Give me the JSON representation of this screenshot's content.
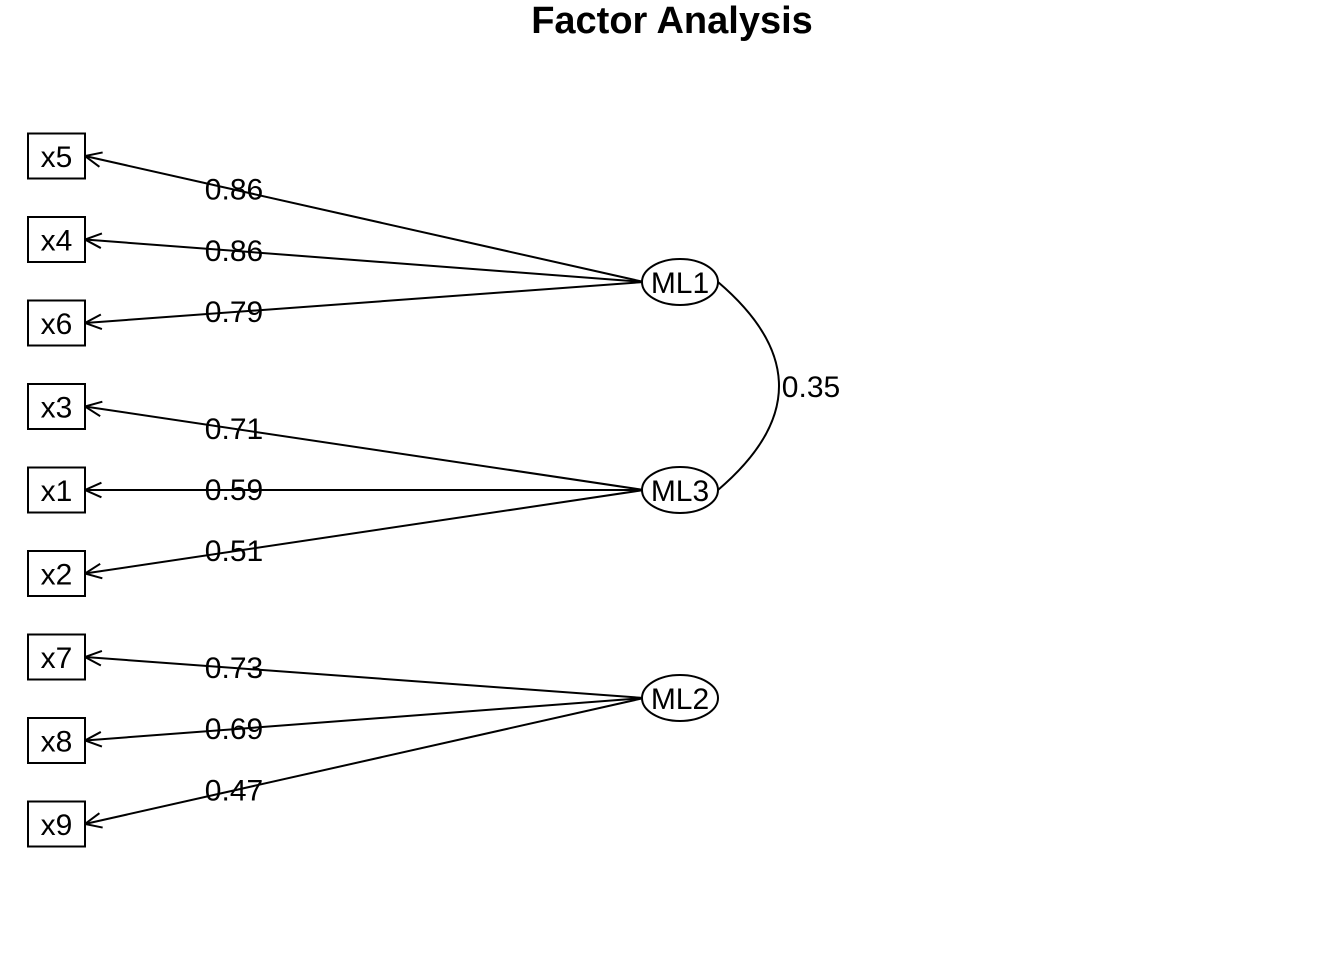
{
  "title": "Factor Analysis",
  "factors": [
    {
      "id": "ML1",
      "label": "ML1"
    },
    {
      "id": "ML3",
      "label": "ML3"
    },
    {
      "id": "ML2",
      "label": "ML2"
    }
  ],
  "variables": [
    {
      "id": "x5",
      "label": "x5"
    },
    {
      "id": "x4",
      "label": "x4"
    },
    {
      "id": "x6",
      "label": "x6"
    },
    {
      "id": "x3",
      "label": "x3"
    },
    {
      "id": "x1",
      "label": "x1"
    },
    {
      "id": "x2",
      "label": "x2"
    },
    {
      "id": "x7",
      "label": "x7"
    },
    {
      "id": "x8",
      "label": "x8"
    },
    {
      "id": "x9",
      "label": "x9"
    }
  ],
  "loadings": [
    {
      "factor": "ML1",
      "variable": "x5",
      "value": "0.86"
    },
    {
      "factor": "ML1",
      "variable": "x4",
      "value": "0.86"
    },
    {
      "factor": "ML1",
      "variable": "x6",
      "value": "0.79"
    },
    {
      "factor": "ML3",
      "variable": "x3",
      "value": "0.71"
    },
    {
      "factor": "ML3",
      "variable": "x1",
      "value": "0.59"
    },
    {
      "factor": "ML3",
      "variable": "x2",
      "value": "0.51"
    },
    {
      "factor": "ML2",
      "variable": "x7",
      "value": "0.73"
    },
    {
      "factor": "ML2",
      "variable": "x8",
      "value": "0.69"
    },
    {
      "factor": "ML2",
      "variable": "x9",
      "value": "0.47"
    }
  ],
  "correlations": [
    {
      "from": "ML1",
      "to": "ML3",
      "value": "0.35"
    }
  ]
}
